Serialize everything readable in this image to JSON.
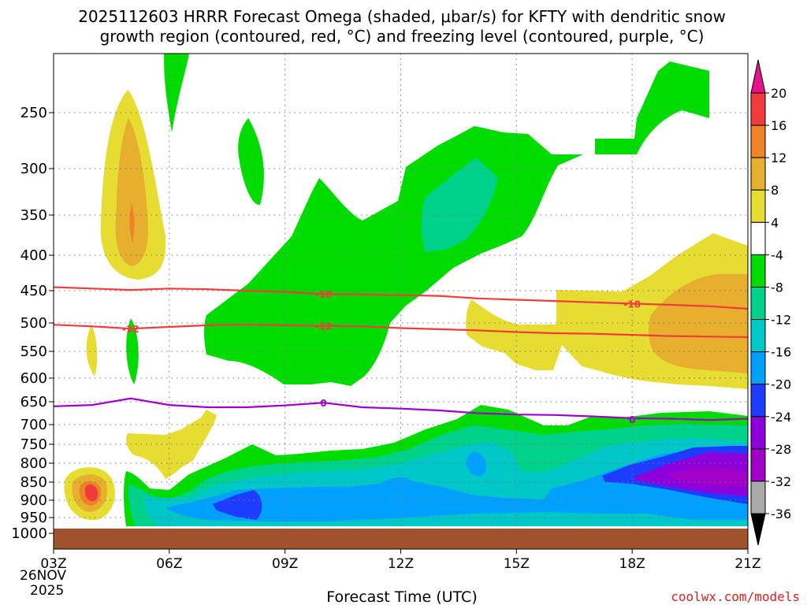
{
  "chart_data": {
    "type": "heatmap",
    "title_line1": "2025112603 HRRR Forecast Omega (shaded, μbar/s) for KFTY with dendritic snow",
    "title_line2": "growth region (contoured, red, °C) and freezing level (contoured, purple, °C)",
    "xlabel": "Forecast Time (UTC)",
    "date_label": [
      "26NOV",
      "2025"
    ],
    "credit": "coolwx.com/models",
    "x_ticks": [
      {
        "hour": 3,
        "label": "03Z"
      },
      {
        "hour": 6,
        "label": "06Z"
      },
      {
        "hour": 9,
        "label": "09Z"
      },
      {
        "hour": 12,
        "label": "12Z"
      },
      {
        "hour": 15,
        "label": "15Z"
      },
      {
        "hour": 18,
        "label": "18Z"
      },
      {
        "hour": 21,
        "label": "21Z"
      }
    ],
    "xlim": [
      3,
      21
    ],
    "y_ticks": [
      {
        "value": 250,
        "label": "250"
      },
      {
        "value": 300,
        "label": "300"
      },
      {
        "value": 350,
        "label": "350"
      },
      {
        "value": 400,
        "label": "400"
      },
      {
        "value": 450,
        "label": "450"
      },
      {
        "value": 500,
        "label": "500"
      },
      {
        "value": 550,
        "label": "550"
      },
      {
        "value": 600,
        "label": "600"
      },
      {
        "value": 650,
        "label": "650"
      },
      {
        "value": 700,
        "label": "700"
      },
      {
        "value": 750,
        "label": "750"
      },
      {
        "value": 800,
        "label": "800"
      },
      {
        "value": 850,
        "label": "850"
      },
      {
        "value": 900,
        "label": "900"
      },
      {
        "value": 950,
        "label": "950"
      },
      {
        "value": 1000,
        "label": "1000"
      }
    ],
    "ylim": [
      200,
      1030
    ],
    "surface_pressure": 985,
    "colorbar": {
      "levels": [
        {
          "label": "20",
          "color": "#e8128c"
        },
        {
          "label": "16",
          "color": "#f03c3c"
        },
        {
          "label": "12",
          "color": "#f08228"
        },
        {
          "label": "8",
          "color": "#e6af2d"
        },
        {
          "label": "4",
          "color": "#e6dc32"
        },
        {
          "label": "-4",
          "color": "#ffffff"
        },
        {
          "label": "-8",
          "color": "#00dc00"
        },
        {
          "label": "-12",
          "color": "#00d28c"
        },
        {
          "label": "-16",
          "color": "#00c8c8"
        },
        {
          "label": "-20",
          "color": "#00a0ff"
        },
        {
          "label": "-24",
          "color": "#1e3cff"
        },
        {
          "label": "-28",
          "color": "#8c00dc"
        },
        {
          "label": "-32",
          "color": "#a000c8"
        },
        {
          "label": "-36",
          "color": "#aaaaaa"
        }
      ],
      "bottom_arrow_color": "#000000"
    },
    "contours": [
      {
        "name": "-18C isotherm",
        "label": "-18",
        "color": "#f03c3c",
        "points": [
          [
            3,
            445
          ],
          [
            4,
            447
          ],
          [
            5,
            449
          ],
          [
            6,
            447
          ],
          [
            7,
            448
          ],
          [
            8,
            450
          ],
          [
            9,
            452
          ],
          [
            10,
            455
          ],
          [
            11,
            456
          ],
          [
            12,
            457
          ],
          [
            13,
            458
          ],
          [
            14,
            462
          ],
          [
            15,
            464
          ],
          [
            16,
            466
          ],
          [
            17,
            468
          ],
          [
            18,
            470
          ],
          [
            19,
            472
          ],
          [
            20,
            474
          ],
          [
            21,
            478
          ]
        ],
        "label_positions": [
          [
            10,
            455
          ],
          [
            18,
            470
          ]
        ]
      },
      {
        "name": "-12C isotherm",
        "label": "-12",
        "color": "#f03c3c",
        "points": [
          [
            3,
            503
          ],
          [
            4,
            506
          ],
          [
            5,
            510
          ],
          [
            6,
            507
          ],
          [
            7,
            504
          ],
          [
            8,
            503
          ],
          [
            9,
            504
          ],
          [
            10,
            505
          ],
          [
            11,
            506
          ],
          [
            12,
            509
          ],
          [
            13,
            511
          ],
          [
            14,
            513
          ],
          [
            15,
            516
          ],
          [
            16,
            518
          ],
          [
            17,
            519
          ],
          [
            18,
            521
          ],
          [
            19,
            523
          ],
          [
            20,
            524
          ],
          [
            21,
            525
          ]
        ],
        "label_positions": [
          [
            5,
            510
          ],
          [
            10,
            505
          ]
        ]
      },
      {
        "name": "0C freezing level",
        "label": "0",
        "color": "#a000c8",
        "points": [
          [
            3,
            660
          ],
          [
            4,
            657
          ],
          [
            5,
            643
          ],
          [
            6,
            657
          ],
          [
            7,
            662
          ],
          [
            8,
            662
          ],
          [
            9,
            658
          ],
          [
            10,
            652
          ],
          [
            11,
            662
          ],
          [
            12,
            665
          ],
          [
            13,
            669
          ],
          [
            14,
            675
          ],
          [
            15,
            678
          ],
          [
            16,
            679
          ],
          [
            17,
            682
          ],
          [
            18,
            686
          ],
          [
            19,
            687
          ],
          [
            20,
            690
          ],
          [
            21,
            687
          ]
        ],
        "label_positions": [
          [
            10,
            652
          ],
          [
            18,
            688
          ]
        ]
      }
    ]
  }
}
